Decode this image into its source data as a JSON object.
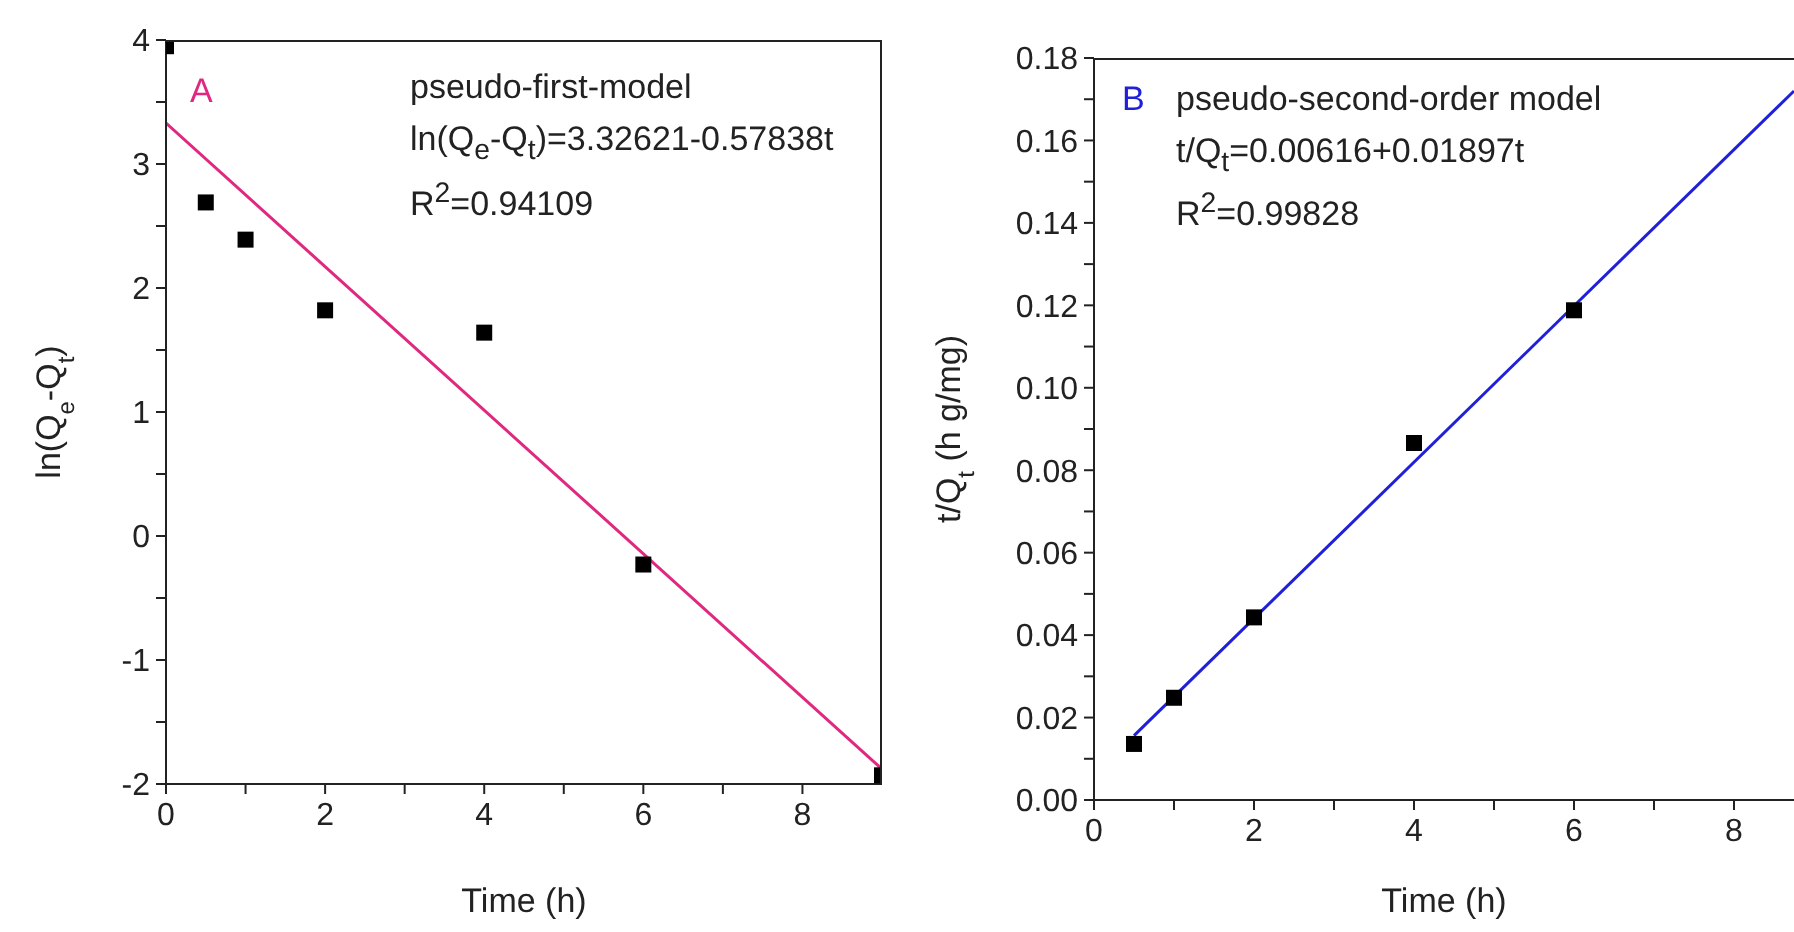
{
  "chart_data": [
    {
      "type": "scatter",
      "xlabel": "Time (h)",
      "ylabel": "ln(Q$_{e}$-Q$_{t}$)",
      "annotations": [
        "A",
        "pseudo-first-model",
        "ln(Q$_{e}$-Q$_{t}$)=3.32621-0.57838t",
        "R$^{2}$=0.94109"
      ],
      "xlim": [
        0,
        9
      ],
      "xticks": [
        0,
        {
          "value": 1,
          "label": null
        },
        2,
        {
          "value": 3,
          "label": null
        },
        4,
        {
          "value": 5,
          "label": null
        },
        6,
        {
          "value": 7,
          "label": null
        },
        8
      ],
      "ylim": [
        -2,
        4
      ],
      "yticks": [
        -2,
        {
          "value": -1.5,
          "label": null
        },
        -1,
        {
          "value": -0.5,
          "label": null
        },
        0,
        {
          "value": 0.5,
          "label": null
        },
        1,
        {
          "value": 1.5,
          "label": null
        },
        2,
        {
          "value": 2.5,
          "label": null
        },
        3,
        {
          "value": 3.5,
          "label": null
        },
        4
      ],
      "series": [
        {
          "color": "#000000",
          "marker": "square",
          "x": [
            0,
            0.5,
            1,
            2,
            4,
            6,
            9
          ],
          "values": [
            3.95,
            2.69,
            2.39,
            1.82,
            1.64,
            -0.23,
            -1.93
          ]
        },
        {
          "type": "line",
          "color": "#e0287f",
          "marker": "none",
          "line_style": "solid",
          "x": [
            0,
            9
          ],
          "values": [
            3.33,
            -1.88
          ]
        }
      ]
    },
    {
      "type": "scatter",
      "xlabel": "Time (h)",
      "ylabel": "t/Q$_{t}$ (h g/mg)",
      "annotations": [
        "B",
        "pseudo-second-order model",
        "t/Q$_{t}$=0.00616+0.01897t",
        "R$^{2}$=0.99828"
      ],
      "xlim": [
        0,
        8.75
      ],
      "xticks": [
        0,
        {
          "value": 1,
          "label": null
        },
        2,
        {
          "value": 3,
          "label": null
        },
        4,
        {
          "value": 5,
          "label": null
        },
        6,
        {
          "value": 7,
          "label": null
        },
        8
      ],
      "ylim": [
        0,
        0.18
      ],
      "yticks": [
        {
          "value": 0,
          "label": "0.00"
        },
        {
          "value": 0.01,
          "label": null
        },
        {
          "value": 0.02,
          "label": "0.02"
        },
        {
          "value": 0.03,
          "label": null
        },
        {
          "value": 0.04,
          "label": "0.04"
        },
        {
          "value": 0.05,
          "label": null
        },
        {
          "value": 0.06,
          "label": "0.06"
        },
        {
          "value": 0.07,
          "label": null
        },
        {
          "value": 0.08,
          "label": "0.08"
        },
        {
          "value": 0.09,
          "label": null
        },
        {
          "value": 0.1,
          "label": "0.10"
        },
        {
          "value": 0.11,
          "label": null
        },
        {
          "value": 0.12,
          "label": "0.12"
        },
        {
          "value": 0.13,
          "label": null
        },
        {
          "value": 0.14,
          "label": "0.14"
        },
        {
          "value": 0.15,
          "label": null
        },
        {
          "value": 0.16,
          "label": "0.16"
        },
        {
          "value": 0.17,
          "label": null
        },
        {
          "value": 0.18,
          "label": "0.18"
        }
      ],
      "series": [
        {
          "color": "#000000",
          "marker": "square",
          "x": [
            0.5,
            1,
            2,
            4,
            6
          ],
          "values": [
            0.0136,
            0.0248,
            0.0443,
            0.0866,
            0.1188
          ]
        },
        {
          "type": "line",
          "color": "#2020d8",
          "marker": "none",
          "line_style": "solid",
          "x": [
            0.5,
            8.75
          ],
          "values": [
            0.0156,
            0.172
          ]
        }
      ]
    }
  ]
}
